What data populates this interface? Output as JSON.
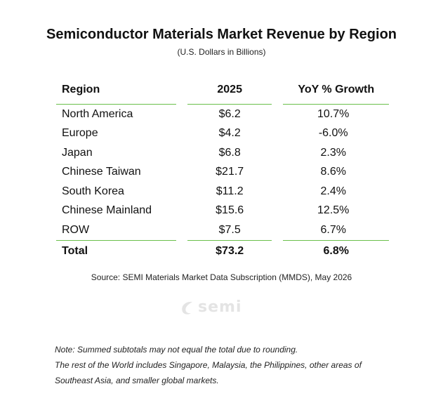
{
  "header": {
    "title": "Semiconductor Materials Market Revenue by Region",
    "subtitle": "(U.S. Dollars in Billions)"
  },
  "table": {
    "columns": [
      "Region",
      "2025",
      "YoY % Growth"
    ],
    "rows": [
      {
        "region": "North America",
        "value": "$6.2",
        "growth": "10.7%"
      },
      {
        "region": "Europe",
        "value": "$4.2",
        "growth": "-6.0%"
      },
      {
        "region": "Japan",
        "value": "$6.8",
        "growth": "2.3%"
      },
      {
        "region": "Chinese Taiwan",
        "value": "$21.7",
        "growth": "8.6%"
      },
      {
        "region": "South Korea",
        "value": "$11.2",
        "growth": "2.4%"
      },
      {
        "region": "Chinese Mainland",
        "value": "$15.6",
        "growth": "12.5%"
      },
      {
        "region": "ROW",
        "value": "$7.5",
        "growth": "6.7%"
      }
    ],
    "total": {
      "region": "Total",
      "value": "$73.2",
      "growth": "6.8%"
    }
  },
  "source": "Source: SEMI Materials Market Data Subscription (MMDS), May 2026",
  "logo": {
    "text": "semi",
    "icon": "semi-logo-icon",
    "color": "#e4e4e4"
  },
  "notes": [
    "Note: Summed subtotals may not equal the total due to rounding.",
    "The rest of the World includes Singapore, Malaysia, the Philippines, other areas of",
    "Southeast Asia, and smaller global markets."
  ],
  "colors": {
    "accent_line": "#6abf4b"
  }
}
